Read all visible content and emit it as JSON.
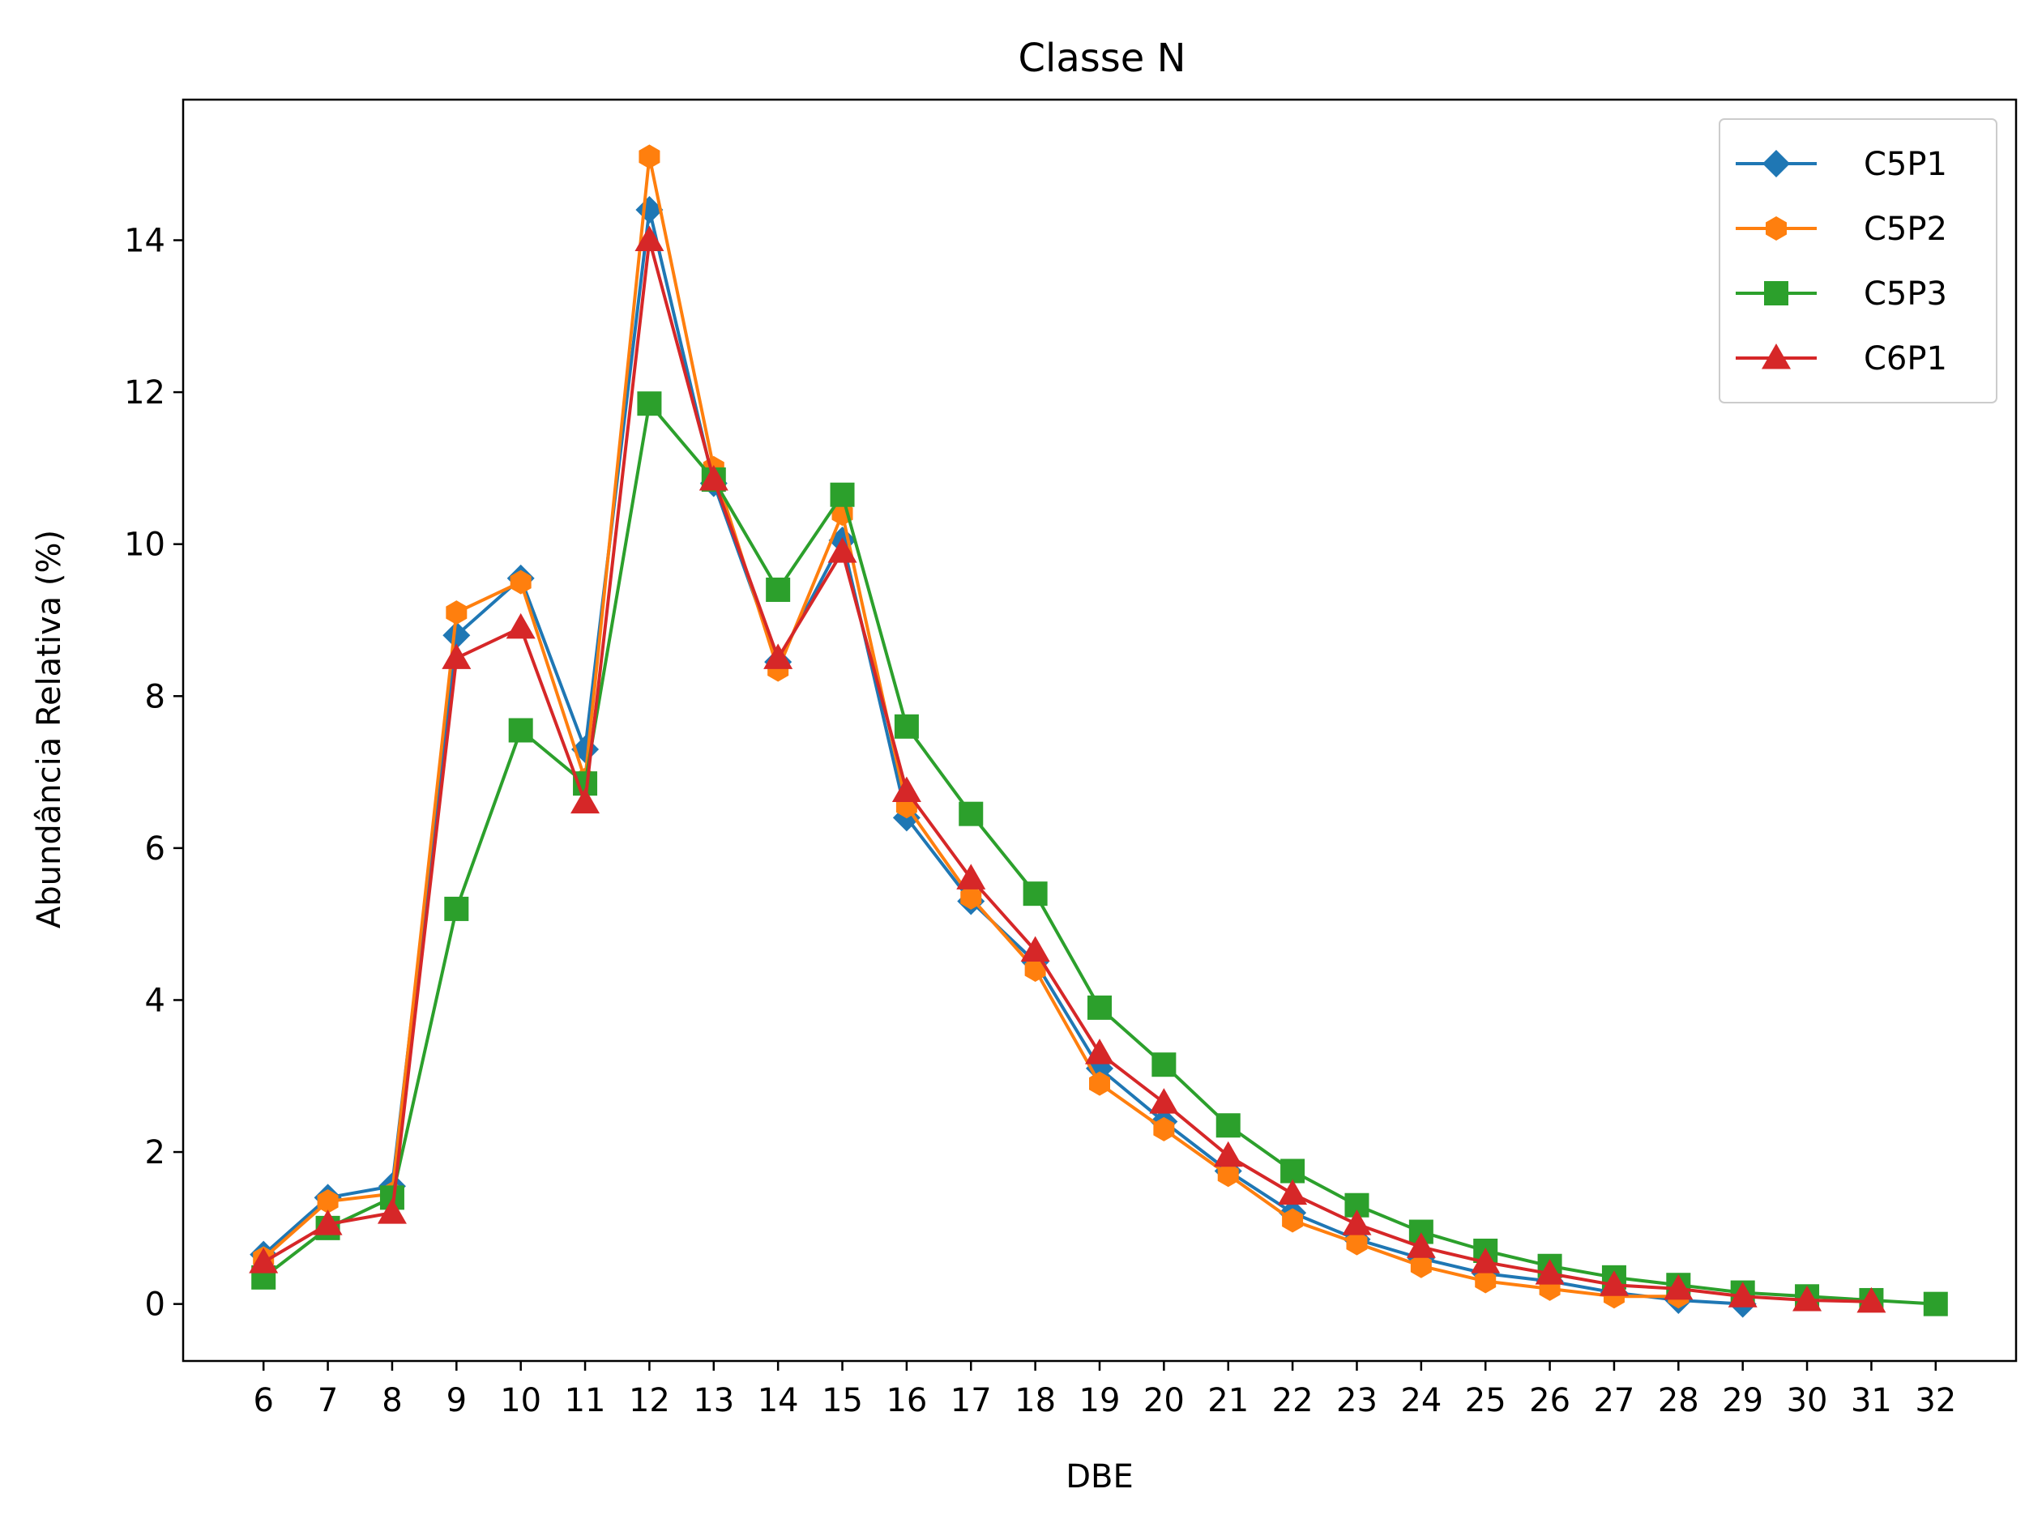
{
  "chart_data": {
    "type": "line",
    "title": "Classe N",
    "xlabel": "DBE",
    "ylabel": "Abundância Relativa (%)",
    "x": [
      6,
      7,
      8,
      9,
      10,
      11,
      12,
      13,
      14,
      15,
      16,
      17,
      18,
      19,
      20,
      21,
      22,
      23,
      24,
      25,
      26,
      27,
      28,
      29,
      30,
      31,
      32
    ],
    "xlim": [
      4.75,
      33.25
    ],
    "ylim": [
      -0.75,
      15.85
    ],
    "yticks": [
      0,
      2,
      4,
      6,
      8,
      10,
      12,
      14
    ],
    "grid": false,
    "legend_position": "top-right",
    "series": [
      {
        "name": "C5P1",
        "color": "#1f77b4",
        "marker": "diamond",
        "values": [
          0.65,
          1.4,
          1.55,
          8.8,
          9.55,
          7.3,
          14.4,
          10.8,
          8.45,
          10.05,
          6.4,
          5.3,
          4.5,
          3.1,
          2.4,
          1.75,
          1.2,
          0.85,
          0.6,
          0.4,
          0.3,
          0.15,
          0.05,
          0.0,
          null,
          null,
          null
        ]
      },
      {
        "name": "C5P2",
        "color": "#ff7f0e",
        "marker": "hexagon",
        "values": [
          0.6,
          1.35,
          1.45,
          9.1,
          9.5,
          6.9,
          15.1,
          11.0,
          8.35,
          10.4,
          6.55,
          5.35,
          4.4,
          2.9,
          2.3,
          1.7,
          1.1,
          0.8,
          0.5,
          0.3,
          0.2,
          0.1,
          0.1,
          null,
          null,
          null,
          null
        ]
      },
      {
        "name": "C5P3",
        "color": "#2ca02c",
        "marker": "square",
        "values": [
          0.35,
          1.0,
          1.4,
          5.2,
          7.55,
          6.85,
          11.85,
          10.85,
          9.4,
          10.65,
          7.6,
          6.45,
          5.4,
          3.9,
          3.15,
          2.35,
          1.75,
          1.3,
          0.95,
          0.7,
          0.5,
          0.35,
          0.25,
          0.15,
          0.1,
          0.05,
          0.0
        ]
      },
      {
        "name": "C6P1",
        "color": "#d62728",
        "marker": "triangle",
        "values": [
          0.55,
          1.05,
          1.2,
          8.5,
          8.9,
          6.6,
          14.0,
          10.85,
          8.5,
          9.9,
          6.75,
          5.6,
          4.65,
          3.3,
          2.65,
          1.95,
          1.45,
          1.05,
          0.75,
          0.55,
          0.4,
          0.25,
          0.2,
          0.1,
          0.05,
          0.03,
          null
        ]
      }
    ]
  }
}
